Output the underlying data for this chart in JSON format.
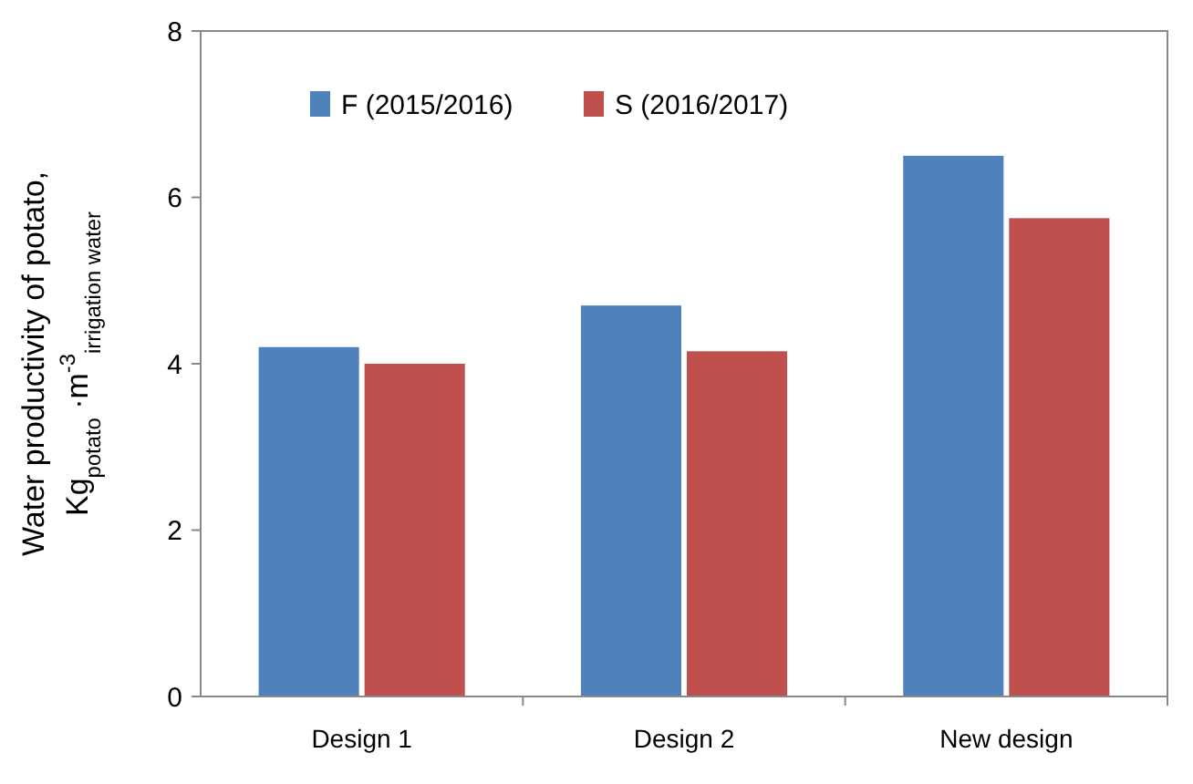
{
  "chart_data": {
    "type": "bar",
    "ylabel": "Water productivity of potato, Kg$_{potato}$ ·m$^{-3}$$_{irrigation water}$",
    "categories": [
      "Design 1",
      "Design 2",
      "New design"
    ],
    "series": [
      {
        "name": "F (2015/2016)",
        "color": "#4f81bd",
        "values": [
          4.2,
          4.7,
          6.5
        ]
      },
      {
        "name": "S (2016/2017)",
        "color": "#c0504d",
        "values": [
          4.0,
          4.15,
          5.75
        ]
      }
    ],
    "ylim": [
      0,
      8
    ],
    "yticks": [
      0,
      2,
      4,
      6,
      8
    ],
    "grid": false,
    "legend": "top left"
  }
}
